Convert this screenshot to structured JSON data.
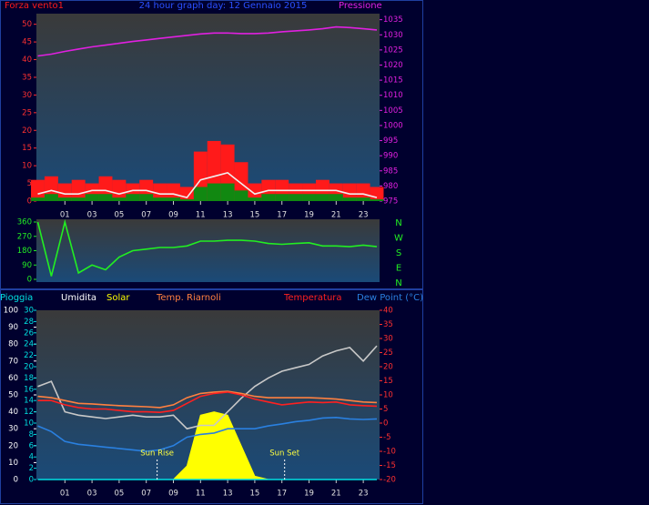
{
  "chart_data": [
    {
      "type": "line",
      "title": "24 hour graph day:  12 Gennaio 2015",
      "x": [
        -1,
        0,
        1,
        2,
        3,
        4,
        5,
        6,
        7,
        8,
        9,
        10,
        11,
        12,
        13,
        14,
        15,
        16,
        17,
        18,
        19,
        20,
        21,
        22,
        23,
        24
      ],
      "xlim": [
        -1.1,
        24.2
      ],
      "xticks": [
        {
          "value": 1,
          "label": "01"
        },
        {
          "value": 3,
          "label": "03"
        },
        {
          "value": 5,
          "label": "05"
        },
        {
          "value": 7,
          "label": "07"
        },
        {
          "value": 9,
          "label": "09"
        },
        {
          "value": 11,
          "label": "11"
        },
        {
          "value": 13,
          "label": "13"
        },
        {
          "value": 15,
          "label": "15"
        },
        {
          "value": 17,
          "label": "17"
        },
        {
          "value": 19,
          "label": "19"
        },
        {
          "value": 21,
          "label": "21"
        },
        {
          "value": 23,
          "label": "23"
        }
      ],
      "ylim": [
        0,
        53
      ],
      "yticks": [
        0,
        5,
        10,
        15,
        20,
        25,
        30,
        35,
        40,
        45,
        50
      ],
      "y2lim": [
        975,
        1037
      ],
      "y2ticks": [
        975,
        980,
        985,
        990,
        995,
        1000,
        1005,
        1010,
        1015,
        1020,
        1025,
        1030,
        1035
      ],
      "series": [
        {
          "name": "Forza vento1",
          "type": "bar",
          "color": "#ff1a1a",
          "values": [
            6,
            7,
            5,
            6,
            5,
            7,
            6,
            5,
            6,
            5,
            5,
            4,
            14,
            17,
            16,
            11,
            5,
            6,
            6,
            5,
            5,
            6,
            5,
            5,
            5,
            4
          ]
        },
        {
          "type": "bar",
          "color": "#118811",
          "values": [
            1,
            2,
            1,
            1,
            2,
            2,
            1,
            2,
            2,
            1,
            1,
            0.5,
            4,
            5,
            5,
            3,
            1,
            2,
            2,
            2,
            2,
            2,
            2,
            1,
            1,
            0.5
          ]
        },
        {
          "type": "line",
          "color": "#f0f0f0",
          "values": [
            2,
            3,
            2,
            2,
            3,
            3,
            2,
            3,
            3,
            2,
            2,
            1,
            6,
            7,
            8,
            5,
            2,
            3,
            3,
            3,
            3,
            3,
            3,
            2,
            2,
            1
          ]
        },
        {
          "name": "Pressione",
          "type": "line",
          "axis": "y2",
          "color": "#e020e0",
          "values": [
            1023,
            1023.6,
            1024.5,
            1025.3,
            1026,
            1026.6,
            1027.2,
            1027.8,
            1028.3,
            1028.8,
            1029.3,
            1029.8,
            1030.3,
            1030.6,
            1030.6,
            1030.4,
            1030.4,
            1030.6,
            1031,
            1031.3,
            1031.6,
            1032,
            1032.6,
            1032.4,
            1032,
            1031.6
          ]
        }
      ]
    },
    {
      "type": "line",
      "x": [
        -1,
        0,
        1,
        2,
        3,
        4,
        5,
        6,
        7,
        8,
        9,
        10,
        11,
        12,
        13,
        14,
        15,
        16,
        17,
        18,
        19,
        20,
        21,
        22,
        23,
        24
      ],
      "xlim": [
        -1.1,
        24.2
      ],
      "ylim": [
        0,
        360
      ],
      "yticks": [
        0,
        90,
        180,
        270,
        360
      ],
      "compass_labels": [
        "N",
        "W",
        "S",
        "E",
        "N"
      ],
      "series": [
        {
          "type": "line",
          "color": "#22ee22",
          "values": [
            360,
            20,
            360,
            40,
            90,
            60,
            140,
            180,
            190,
            200,
            200,
            210,
            240,
            240,
            245,
            245,
            240,
            225,
            220,
            225,
            230,
            210,
            210,
            205,
            215,
            205
          ]
        }
      ]
    },
    {
      "type": "line",
      "x": [
        -1,
        0,
        1,
        2,
        3,
        4,
        5,
        6,
        7,
        8,
        9,
        10,
        11,
        12,
        13,
        14,
        15,
        16,
        17,
        18,
        19,
        20,
        21,
        22,
        23,
        24
      ],
      "xlim": [
        -1.1,
        24.2
      ],
      "xticks": [
        {
          "value": 1,
          "label": "01"
        },
        {
          "value": 3,
          "label": "03"
        },
        {
          "value": 5,
          "label": "05"
        },
        {
          "value": 7,
          "label": "07"
        },
        {
          "value": 9,
          "label": "09"
        },
        {
          "value": 11,
          "label": "11"
        },
        {
          "value": 13,
          "label": "13"
        },
        {
          "value": 15,
          "label": "15"
        },
        {
          "value": 17,
          "label": "17"
        },
        {
          "value": 19,
          "label": "19"
        },
        {
          "value": 21,
          "label": "21"
        },
        {
          "value": 23,
          "label": "23"
        }
      ],
      "ylim": [
        0,
        100
      ],
      "yticks": [
        0,
        10,
        20,
        30,
        40,
        50,
        60,
        70,
        80,
        90,
        100
      ],
      "y3lim": [
        0,
        30
      ],
      "y3ticks": [
        0,
        2,
        4,
        6,
        8,
        10,
        12,
        14,
        16,
        18,
        20,
        22,
        24,
        26,
        28,
        30
      ],
      "y2lim": [
        -20,
        40
      ],
      "y2ticks": [
        -20,
        -15,
        -10,
        -5,
        0,
        5,
        10,
        15,
        20,
        25,
        30,
        35,
        40
      ],
      "annotations": [
        {
          "text": "Sun Rise",
          "x": 7.8
        },
        {
          "text": "Sun Set",
          "x": 17.2
        }
      ],
      "series": [
        {
          "name": "Pioggia",
          "type": "line",
          "axis": "y3",
          "color": "#00e0e0",
          "values": [
            0,
            0,
            0,
            0,
            0,
            0,
            0,
            0,
            0,
            0,
            0,
            0,
            0,
            0,
            0,
            0,
            0,
            0,
            0,
            0,
            0,
            0,
            0,
            0,
            0,
            0
          ]
        },
        {
          "name": "Umidita",
          "type": "line",
          "color": "#c8c8c8",
          "values": [
            55,
            58,
            40,
            38,
            37,
            36,
            37,
            38,
            37,
            37,
            38,
            30,
            32,
            32,
            40,
            48,
            55,
            60,
            64,
            66,
            68,
            73,
            76,
            78,
            70,
            79
          ]
        },
        {
          "name": "Solar",
          "type": "area",
          "color": "#ffff00",
          "values": [
            0,
            0,
            0,
            0,
            0,
            0,
            0,
            0,
            0,
            0,
            0,
            8,
            38,
            40,
            38,
            20,
            2,
            0,
            0,
            0,
            0,
            0,
            0,
            0,
            0,
            0
          ]
        },
        {
          "name": "Temp. Riarnoli",
          "type": "line",
          "axis": "y2",
          "color": "#ff8040",
          "values": [
            9.5,
            9,
            8,
            7,
            6.8,
            6.5,
            6.2,
            6,
            5.8,
            5.5,
            6.5,
            9,
            10.5,
            11,
            11.3,
            10.5,
            9.5,
            9,
            9,
            9,
            9,
            8.8,
            8.5,
            8,
            7.5,
            7.3
          ]
        },
        {
          "name": "Temperatura",
          "type": "line",
          "axis": "y2",
          "color": "#ff2020",
          "values": [
            8,
            8,
            6.5,
            5.5,
            5,
            5,
            4.5,
            4,
            4,
            3.8,
            4.5,
            7,
            9.5,
            10.5,
            11,
            10,
            8.5,
            7.5,
            6.5,
            7,
            7.5,
            7.3,
            7.5,
            6.5,
            6.2,
            6
          ]
        },
        {
          "name": "Dew Point (°C)",
          "type": "line",
          "axis": "y2",
          "color": "#2a80e0",
          "values": [
            -1,
            -3,
            -6.5,
            -7.5,
            -8,
            -8.5,
            -9,
            -9.5,
            -10,
            -9.5,
            -8,
            -5,
            -4,
            -3.5,
            -2,
            -2,
            -2,
            -1,
            -0.3,
            0.5,
            1,
            1.8,
            2,
            1.5,
            1.3,
            1.5
          ]
        }
      ]
    }
  ]
}
